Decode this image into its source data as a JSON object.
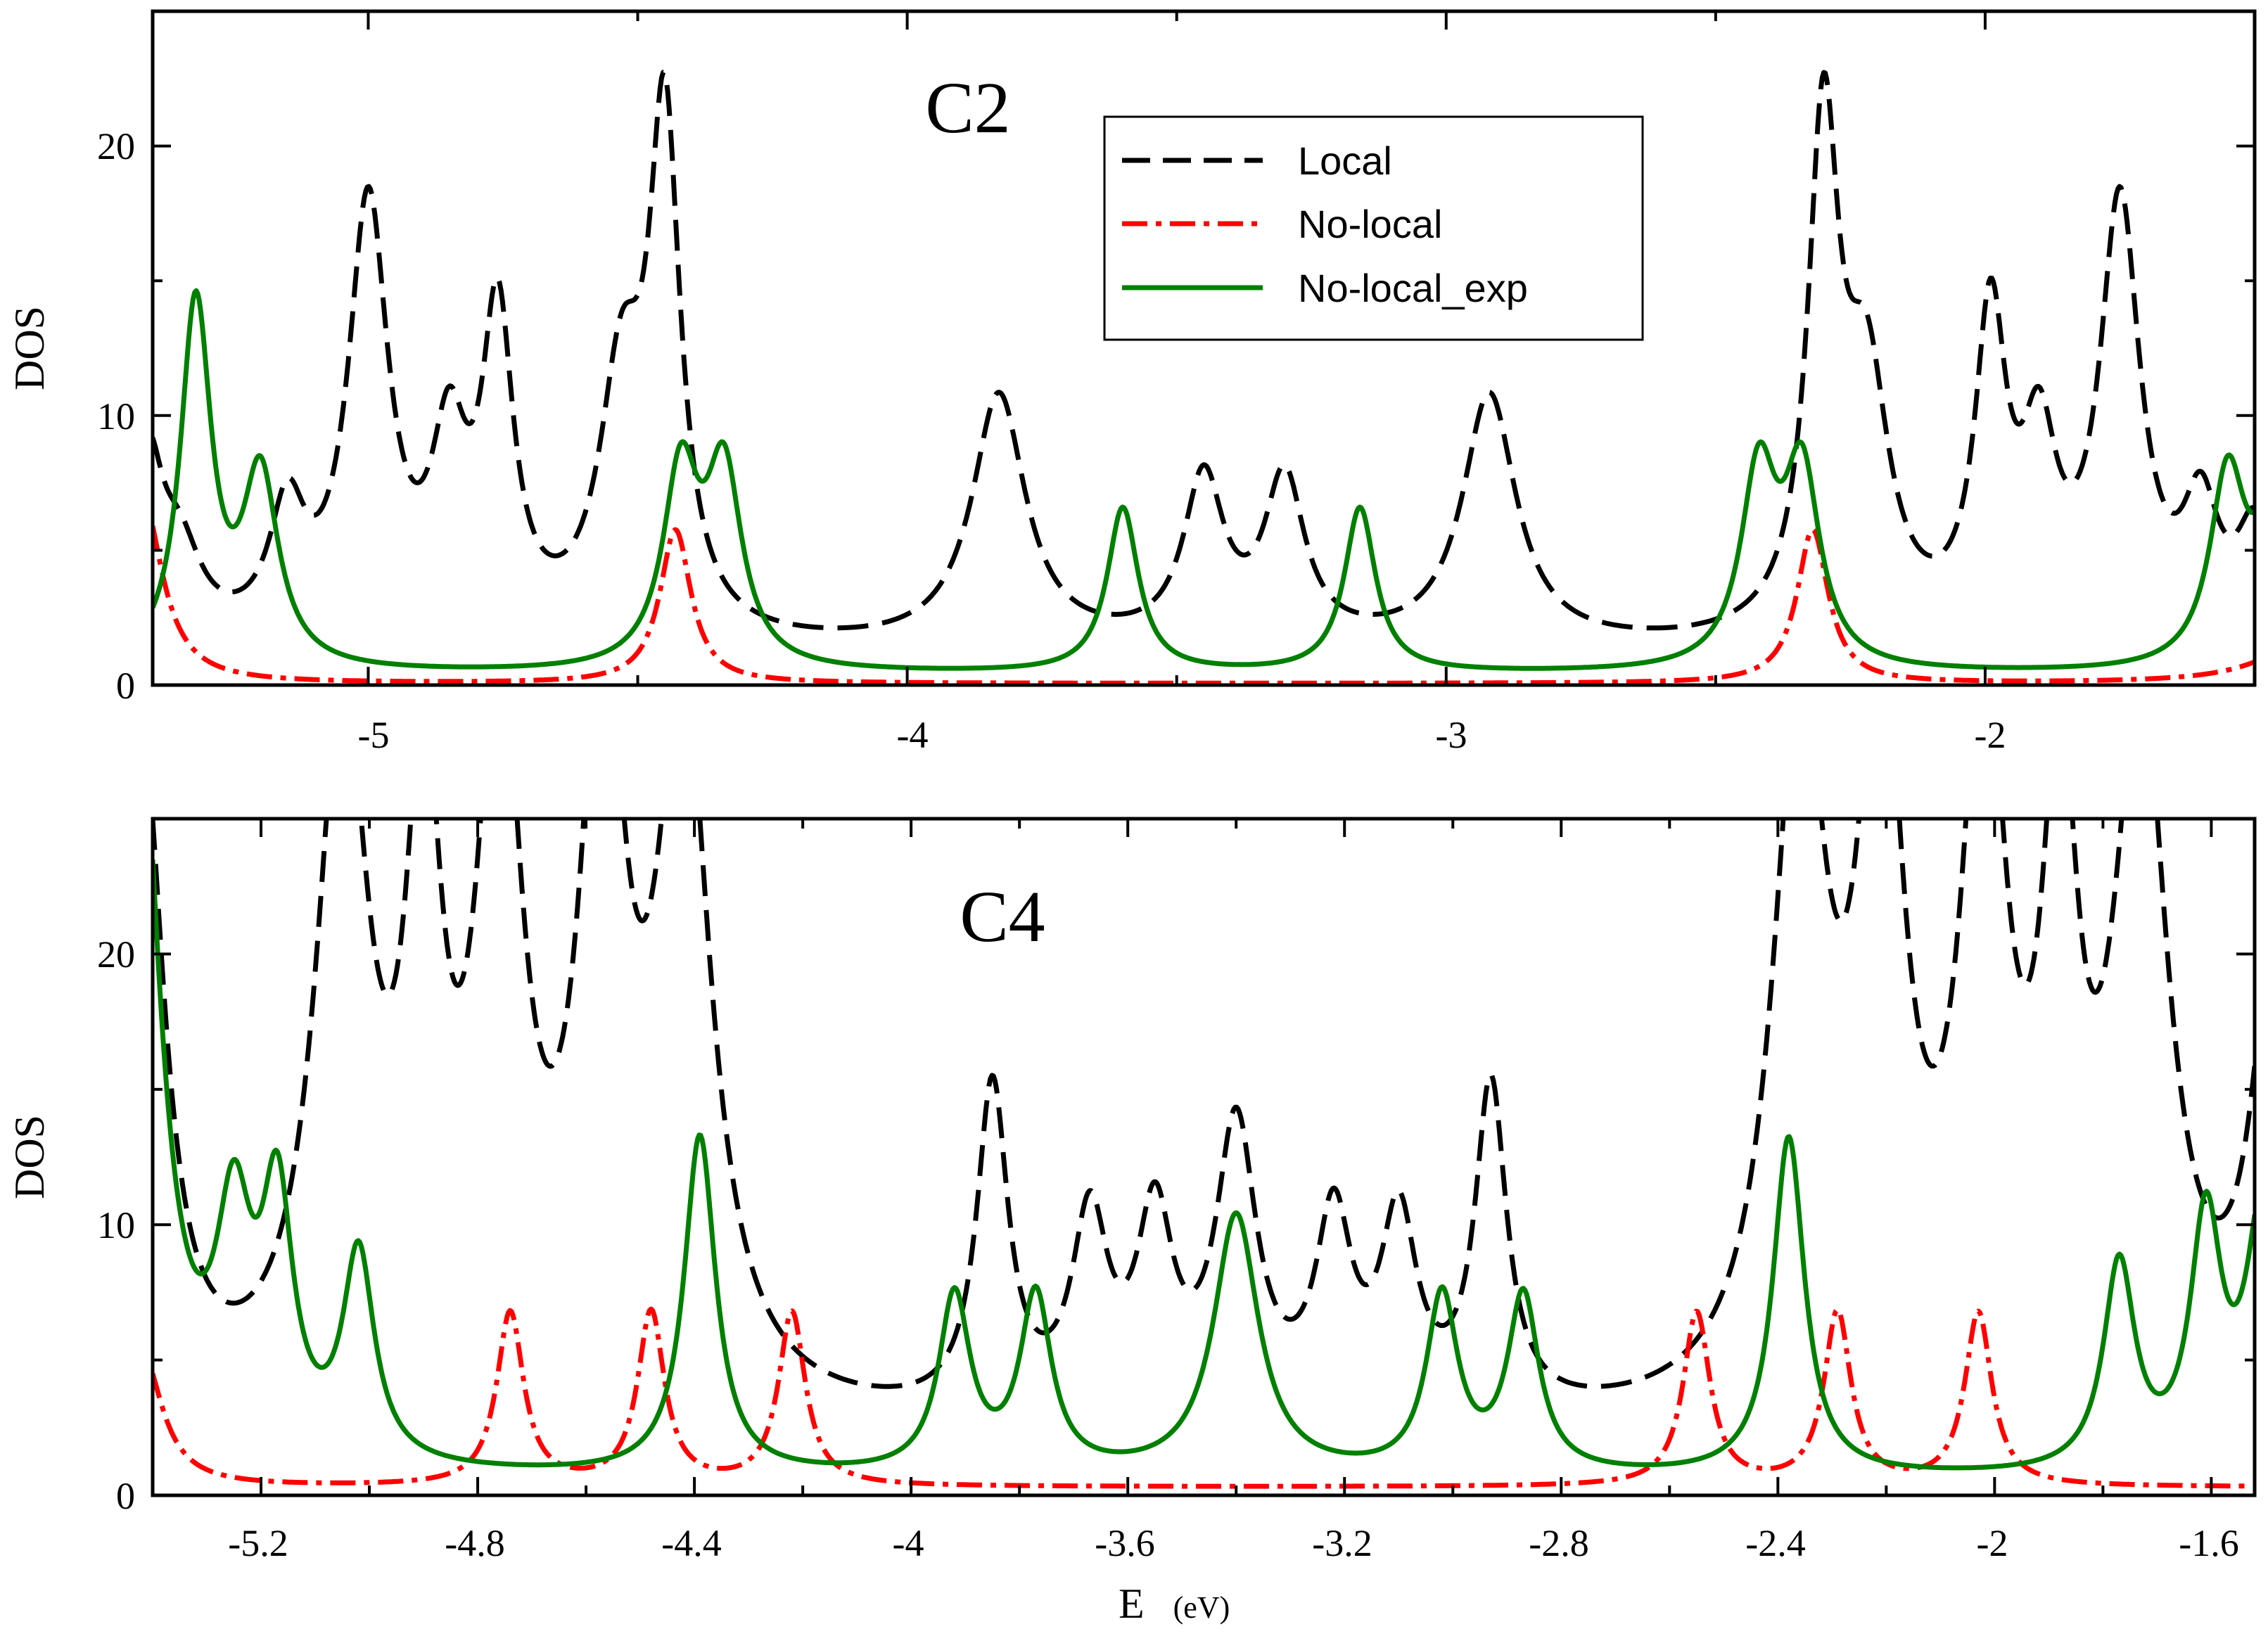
{
  "chart_data": [
    {
      "id": "c2",
      "type": "line",
      "title": "C2",
      "xlabel": "",
      "ylabel": "DOS",
      "xlim": [
        -5.4,
        -1.5
      ],
      "ylim": [
        0,
        25
      ],
      "x_ticks": [
        -5,
        -4,
        -3,
        -2
      ],
      "x_tick_labels": [
        "-5",
        "-4",
        "-3",
        "-2"
      ],
      "y_ticks": [
        0,
        10,
        20
      ],
      "y_tick_labels": [
        "0",
        "10",
        "20"
      ],
      "legend": {
        "placement": "top-center",
        "entries": [
          "Local",
          "No-local",
          "No-local_exp"
        ]
      },
      "series": [
        {
          "name": "Local",
          "color": "#000000",
          "style": "dashed",
          "base": 1.2,
          "peaks": [
            [
              -5.41,
              6.5,
              0.035
            ],
            [
              -5.35,
              3.0,
              0.05
            ],
            [
              -5.15,
              4.5,
              0.04
            ],
            [
              -5.0,
              16.0,
              0.045
            ],
            [
              -4.85,
              6.5,
              0.04
            ],
            [
              -4.76,
              11.5,
              0.035
            ],
            [
              -4.53,
              9.0,
              0.05
            ],
            [
              -4.45,
              18.5,
              0.035
            ],
            [
              -3.83,
              9.3,
              0.06
            ],
            [
              -3.45,
              6.0,
              0.045
            ],
            [
              -3.3,
              6.0,
              0.045
            ],
            [
              -2.92,
              9.3,
              0.06
            ],
            [
              -2.3,
              18.5,
              0.035
            ],
            [
              -2.22,
              9.0,
              0.05
            ],
            [
              -1.99,
              11.5,
              0.035
            ],
            [
              -1.9,
              6.5,
              0.04
            ],
            [
              -1.75,
              16.0,
              0.045
            ],
            [
              -1.6,
              4.5,
              0.04
            ],
            [
              -1.5,
              4.0,
              0.04
            ]
          ]
        },
        {
          "name": "No-local",
          "color": "#ff0000",
          "style": "dashdot",
          "base": 0.05,
          "peaks": [
            [
              -5.42,
              7.0,
              0.045
            ],
            [
              -4.43,
              5.7,
              0.035
            ],
            [
              -2.32,
              5.7,
              0.035
            ],
            [
              -1.4,
              1.6,
              0.1
            ]
          ]
        },
        {
          "name": "No-local_exp",
          "color": "#008000",
          "style": "solid",
          "base": 0.4,
          "peaks": [
            [
              -5.32,
              13.5,
              0.035
            ],
            [
              -5.2,
              7.0,
              0.04
            ],
            [
              -4.42,
              7.1,
              0.04
            ],
            [
              -4.34,
              7.1,
              0.04
            ],
            [
              -3.6,
              6.1,
              0.035
            ],
            [
              -3.16,
              6.1,
              0.035
            ],
            [
              -2.42,
              7.1,
              0.04
            ],
            [
              -2.34,
              7.1,
              0.04
            ],
            [
              -1.55,
              7.0,
              0.04
            ],
            [
              -1.46,
              6.5,
              0.04
            ]
          ]
        }
      ]
    },
    {
      "id": "c4",
      "type": "line",
      "title": "C4",
      "xlabel": "E",
      "xlabel_unit": "(eV)",
      "ylabel": "DOS",
      "xlim": [
        -5.4,
        -1.52
      ],
      "ylim": [
        0,
        25
      ],
      "x_ticks": [
        -5.2,
        -4.8,
        -4.4,
        -4,
        -3.6,
        -3.2,
        -2.8,
        -2.4,
        -2,
        -1.6
      ],
      "x_tick_labels": [
        "-5.2",
        "-4.8",
        "-4.4",
        "-4",
        "-3.6",
        "-3.2",
        "-2.8",
        "-2.4",
        "-2",
        "-1.6"
      ],
      "y_ticks": [
        0,
        10,
        20
      ],
      "y_tick_labels": [
        "0",
        "10",
        "20"
      ],
      "series": [
        {
          "name": "Local",
          "color": "#000000",
          "style": "dashed",
          "base": 2.2,
          "peaks": [
            [
              -5.42,
              25.0,
              0.05
            ],
            [
              -5.05,
              25.0,
              0.06
            ],
            [
              -4.9,
              20.0,
              0.04
            ],
            [
              -4.76,
              25.0,
              0.05
            ],
            [
              -4.57,
              25.0,
              0.05
            ],
            [
              -4.42,
              25.0,
              0.06
            ],
            [
              -3.85,
              12.0,
              0.035
            ],
            [
              -3.67,
              7.0,
              0.04
            ],
            [
              -3.55,
              7.0,
              0.04
            ],
            [
              -3.4,
              10.5,
              0.045
            ],
            [
              -3.22,
              7.0,
              0.04
            ],
            [
              -3.1,
              7.0,
              0.04
            ],
            [
              -2.93,
              12.0,
              0.035
            ],
            [
              -2.36,
              25.0,
              0.06
            ],
            [
              -2.21,
              25.0,
              0.05
            ],
            [
              -2.02,
              25.0,
              0.05
            ],
            [
              -1.88,
              20.0,
              0.04
            ],
            [
              -1.73,
              25.0,
              0.06
            ],
            [
              -1.48,
              18.0,
              0.05
            ]
          ]
        },
        {
          "name": "No-local",
          "color": "#ff0000",
          "style": "dashdot",
          "base": 0.3,
          "peaks": [
            [
              -5.42,
              5.0,
              0.045
            ],
            [
              -4.74,
              6.4,
              0.03
            ],
            [
              -4.48,
              6.4,
              0.03
            ],
            [
              -4.22,
              6.4,
              0.03
            ],
            [
              -2.55,
              6.4,
              0.03
            ],
            [
              -2.29,
              6.4,
              0.03
            ],
            [
              -2.03,
              6.4,
              0.03
            ]
          ]
        },
        {
          "name": "No-local_exp",
          "color": "#008000",
          "style": "solid",
          "base": 0.6,
          "peaks": [
            [
              -5.43,
              30.0,
              0.05
            ],
            [
              -5.25,
              8.0,
              0.04
            ],
            [
              -5.17,
              9.0,
              0.035
            ],
            [
              -5.02,
              7.6,
              0.035
            ],
            [
              -4.39,
              12.5,
              0.035
            ],
            [
              -3.92,
              6.5,
              0.035
            ],
            [
              -3.77,
              6.5,
              0.035
            ],
            [
              -3.4,
              9.6,
              0.05
            ],
            [
              -3.02,
              6.5,
              0.035
            ],
            [
              -2.87,
              6.5,
              0.035
            ],
            [
              -2.38,
              12.5,
              0.035
            ],
            [
              -1.77,
              7.6,
              0.035
            ],
            [
              -1.61,
              9.0,
              0.035
            ],
            [
              -1.5,
              10.5,
              0.04
            ]
          ]
        }
      ]
    }
  ]
}
